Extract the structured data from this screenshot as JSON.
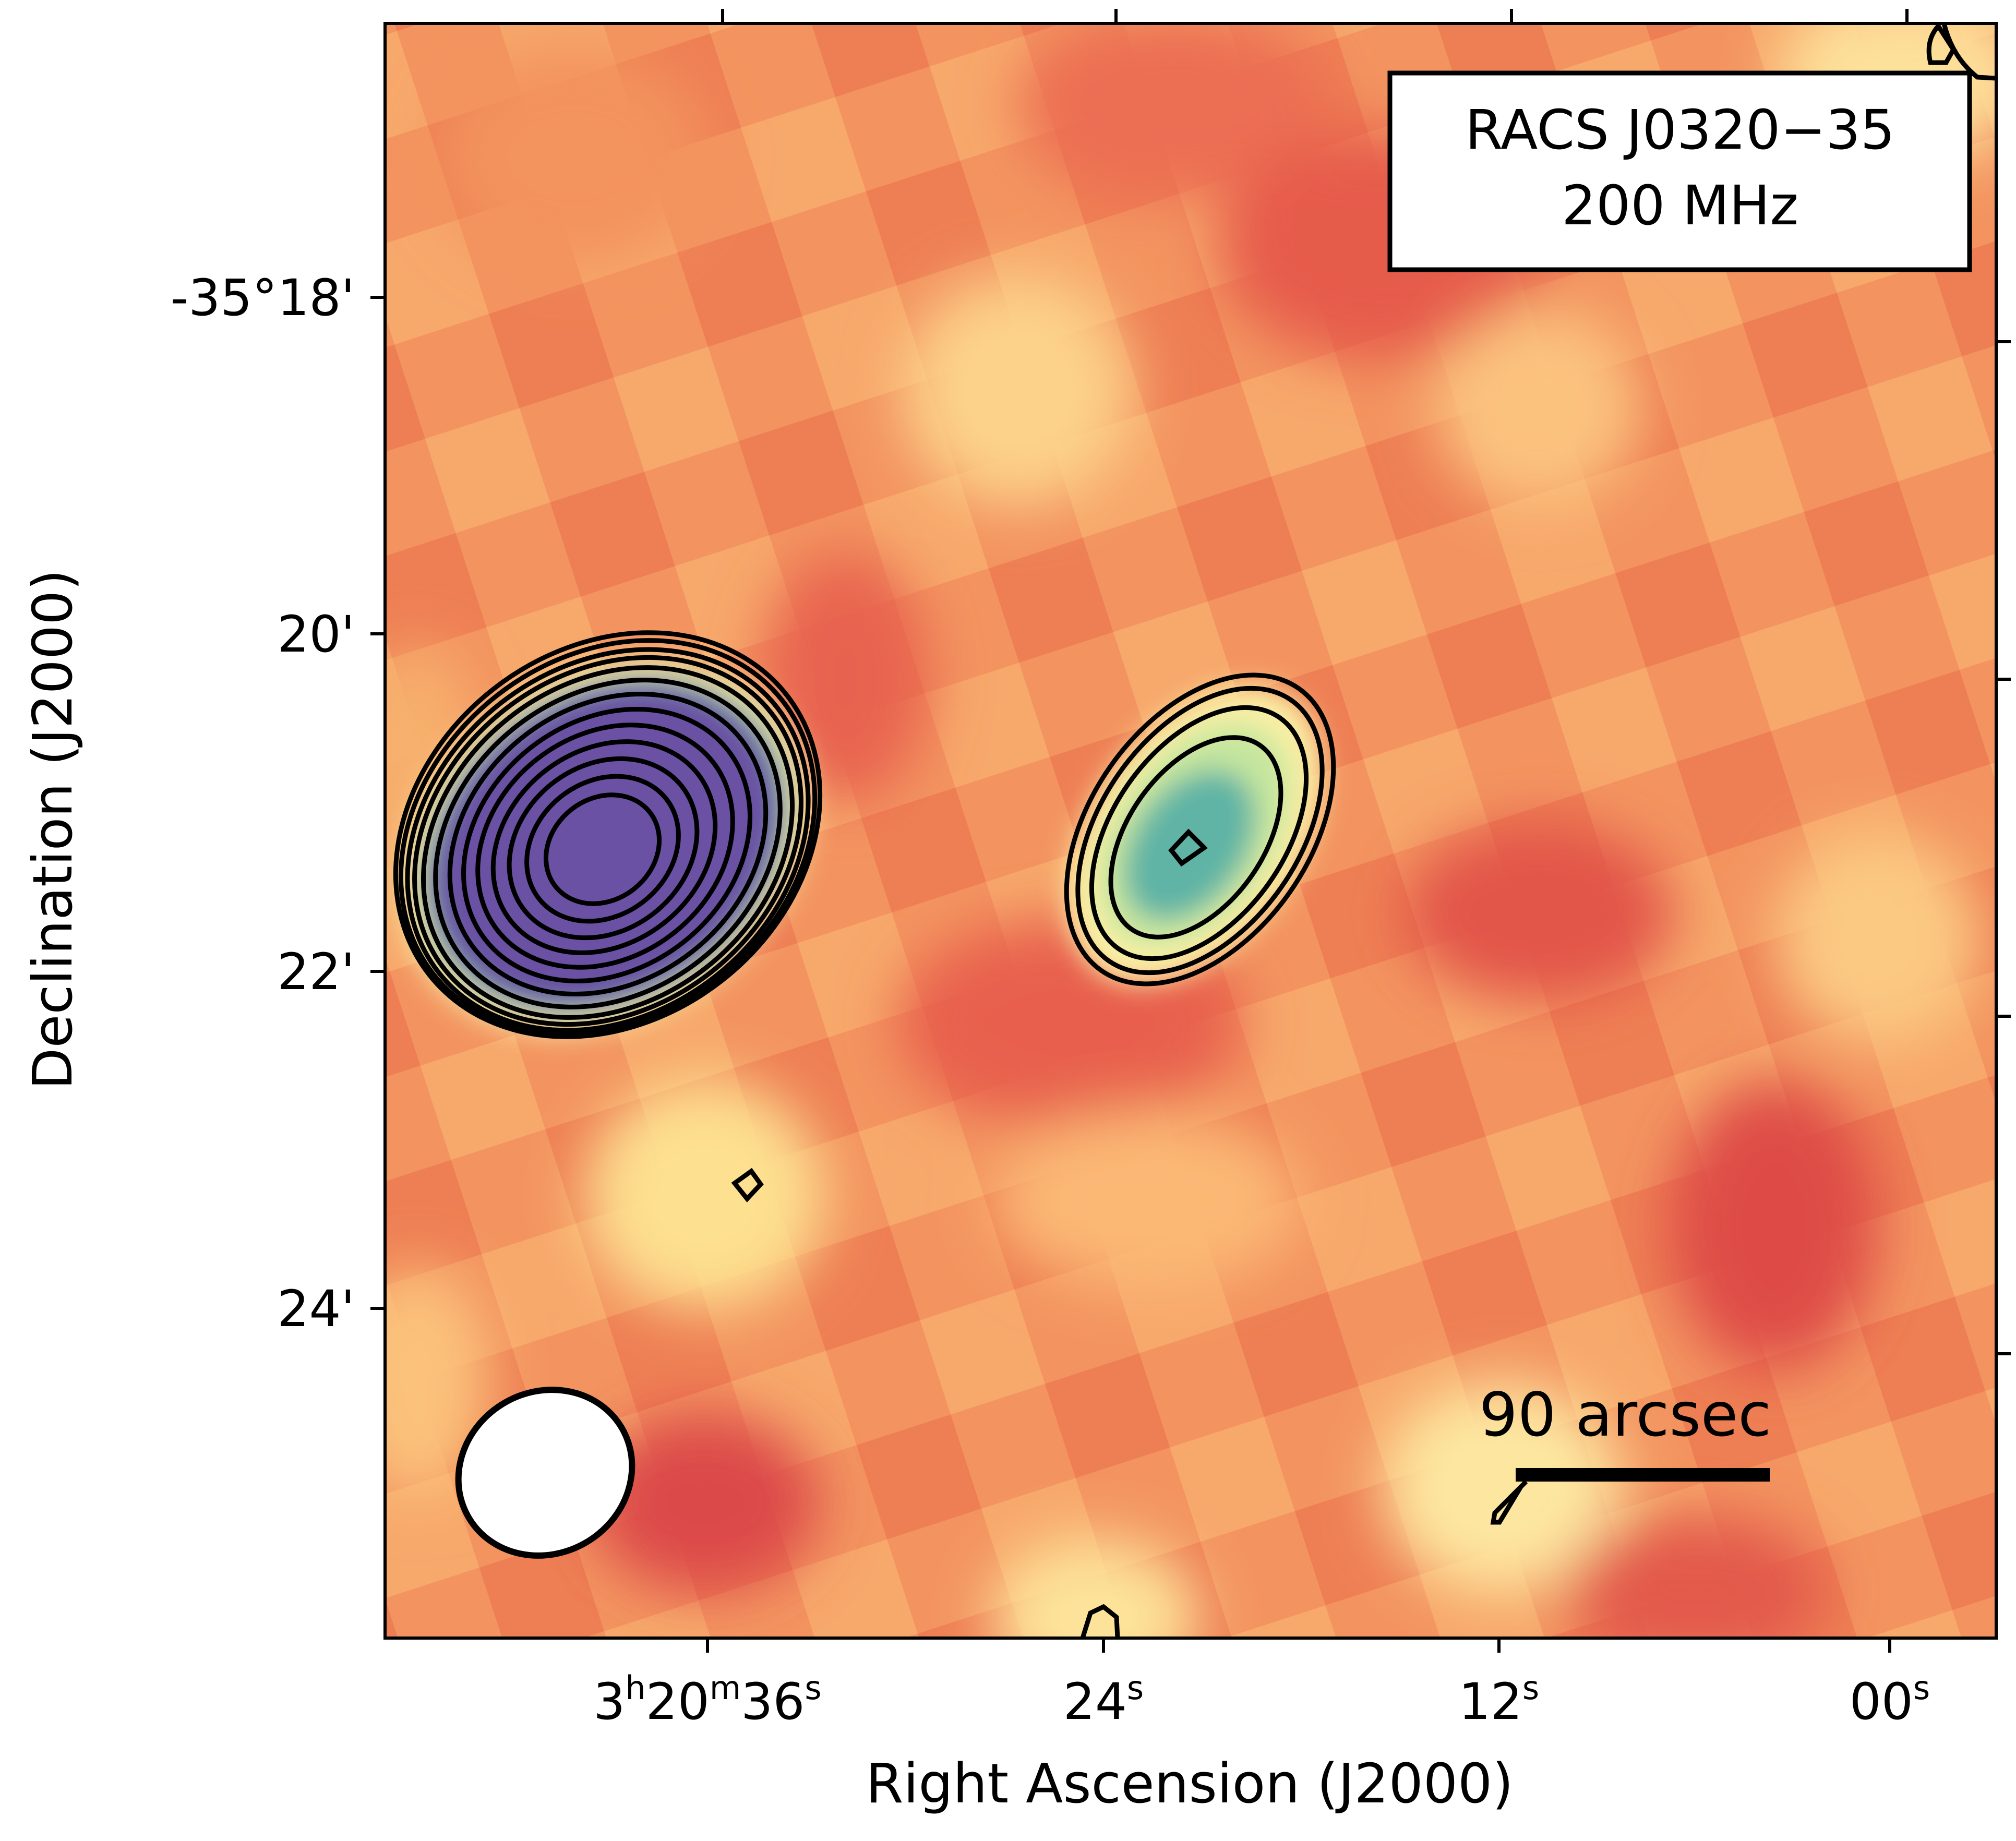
{
  "image": {
    "source_label": "RACS J0320−35",
    "frequency_label": "200 MHz",
    "colormap": [
      "#e15a4b",
      "#f07a4e",
      "#f9a467",
      "#fdd58a",
      "#fbf2a8",
      "#c6e69e",
      "#5fb4a5",
      "#6a51a3"
    ],
    "contour_color": "#000000",
    "background_color": "#f29a5e"
  },
  "axes": {
    "x_title": "Right Ascension (J2000)",
    "y_title": "Declination (J2000)",
    "x_ticks": [
      {
        "value": "36s",
        "h": "3",
        "hs": "h",
        "m": "20",
        "ms": "m",
        "s": "36",
        "ss": "s"
      },
      {
        "value": "24s",
        "s": "24",
        "ss": "s"
      },
      {
        "value": "12s",
        "s": "12",
        "ss": "s"
      },
      {
        "value": "00s",
        "s": "00",
        "ss": "s"
      }
    ],
    "y_ticks": [
      {
        "label": "-35°18'"
      },
      {
        "label": "20'"
      },
      {
        "label": "22'"
      },
      {
        "label": "24'"
      }
    ]
  },
  "scalebar": {
    "label": "90 arcsec",
    "length_arcsec": 90
  },
  "beam": {
    "shape": "ellipse",
    "fill": "#ffffff"
  }
}
